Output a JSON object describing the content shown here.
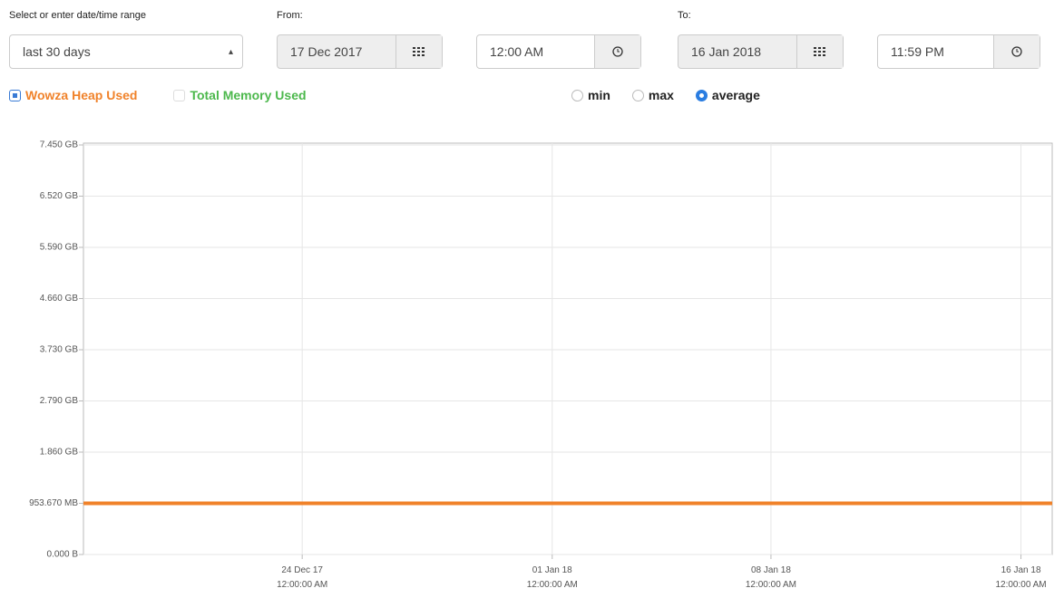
{
  "controls": {
    "range_label": "Select or enter date/time range",
    "range_value": "last 30 days",
    "from_label": "From:",
    "from_date": "17 Dec 2017",
    "from_time": "12:00 AM",
    "to_label": "To:",
    "to_date": "16 Jan 2018",
    "to_time": "11:59 PM",
    "toggles": [
      {
        "label": "Total Memory Used",
        "checked": false,
        "color": "#4cb84c"
      }
    ],
    "modes": [
      {
        "label": "min",
        "selected": false
      },
      {
        "label": "max",
        "selected": false
      },
      {
        "label": "average",
        "selected": true
      }
    ]
  },
  "chart_data": {
    "type": "line",
    "x": [
      "2017-12-17",
      "2018-01-17"
    ],
    "series": [
      {
        "name": "Wowza Heap Used",
        "color": "#f0822a",
        "checked": true,
        "values": [
          1000000000,
          1000000000
        ]
      }
    ],
    "xlim": [
      "2017-12-17",
      "2018-01-17"
    ],
    "xticks": [
      {
        "value": "2017-12-24",
        "label": "24 Dec 17\n12:00:00 AM"
      },
      {
        "value": "2018-01-01",
        "label": "01 Jan 18\n12:00:00 AM"
      },
      {
        "value": "2018-01-08",
        "label": "08 Jan 18\n12:00:00 AM"
      },
      {
        "value": "2018-01-16",
        "label": "16 Jan 18\n12:00:00 AM"
      }
    ],
    "ylim": [
      0,
      8000000000
    ],
    "yticks": [
      {
        "value": 0,
        "label": "0.000 B"
      },
      {
        "value": 1000000000,
        "label": "953.670 MB"
      },
      {
        "value": 2000000000,
        "label": "1.860 GB"
      },
      {
        "value": 3000000000,
        "label": "2.790 GB"
      },
      {
        "value": 4000000000,
        "label": "3.730 GB"
      },
      {
        "value": 5000000000,
        "label": "4.660 GB"
      },
      {
        "value": 6000000000,
        "label": "5.590 GB"
      },
      {
        "value": 7000000000,
        "label": "6.520 GB"
      },
      {
        "value": 8000000000,
        "label": "7.450 GB"
      }
    ],
    "grid": true
  }
}
